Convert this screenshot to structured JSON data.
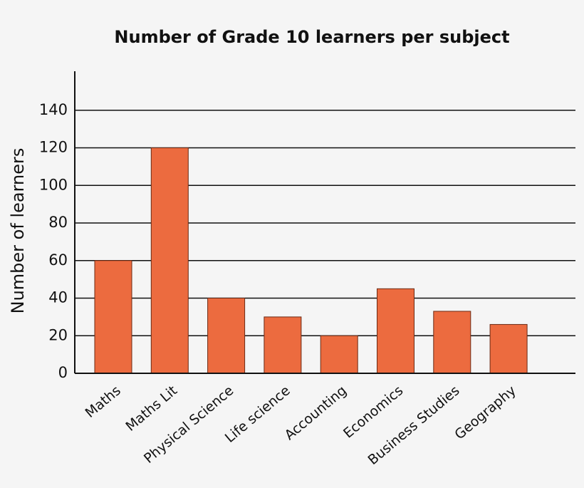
{
  "chart_data": {
    "type": "bar",
    "title": "Number of Grade 10 learners per subject",
    "y_label": "Number of learners",
    "categories": [
      "Maths",
      "Maths Lit",
      "Physical Science",
      "Life science",
      "Accounting",
      "Economics",
      "Business Studies",
      "Geography"
    ],
    "values": [
      60,
      120,
      40,
      30,
      20,
      45,
      33,
      26
    ],
    "color": "#ec6b3f",
    "ylim": [
      0,
      160
    ],
    "yticks": [
      0,
      20,
      40,
      60,
      80,
      100,
      120,
      140
    ],
    "grid": true
  }
}
